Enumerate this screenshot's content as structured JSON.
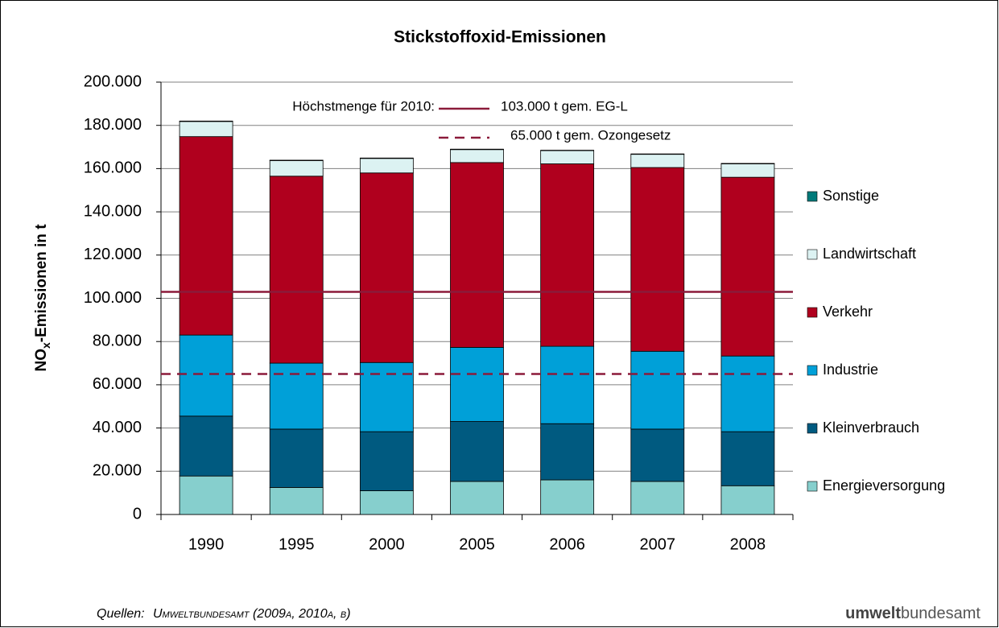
{
  "chart_data": {
    "type": "stacked_bar",
    "title": "Stickstoffoxid-Emissionen",
    "ylabel": {
      "main": "NO",
      "sub": "x",
      "rest": "-Emissionen in t"
    },
    "categories": [
      "1990",
      "1995",
      "2000",
      "2005",
      "2006",
      "2007",
      "2008"
    ],
    "series": [
      {
        "name": "Energieversorgung",
        "color": "#86cfcd",
        "values": [
          17800,
          12500,
          11000,
          15300,
          16000,
          15300,
          13300
        ]
      },
      {
        "name": "Kleinverbrauch",
        "color": "#005a80",
        "values": [
          27700,
          27000,
          27300,
          27700,
          26000,
          24200,
          25000
        ]
      },
      {
        "name": "Industrie",
        "color": "#00a0d8",
        "values": [
          37500,
          30500,
          32000,
          34300,
          35800,
          36000,
          35000
        ]
      },
      {
        "name": "Verkehr",
        "color": "#b0001e",
        "values": [
          91800,
          86500,
          87700,
          85500,
          84400,
          85000,
          82700
        ]
      },
      {
        "name": "Landwirtschaft",
        "color": "#dcf2f2",
        "values": [
          7000,
          7200,
          6700,
          6000,
          6100,
          6100,
          6200
        ]
      },
      {
        "name": "Sonstige",
        "color": "#007a7a",
        "values": [
          200,
          200,
          200,
          200,
          200,
          200,
          200
        ]
      }
    ],
    "ylim": [
      0,
      200000
    ],
    "yticks": [
      0,
      {
        "value": 20000,
        "label": "20.000"
      },
      {
        "value": 40000,
        "label": "40.000"
      },
      {
        "value": 60000,
        "label": "60.000"
      },
      {
        "value": 80000,
        "label": "80.000"
      },
      {
        "value": 100000,
        "label": "100.000"
      },
      {
        "value": 120000,
        "label": "120.000"
      },
      {
        "value": 140000,
        "label": "140.000"
      },
      {
        "value": 160000,
        "label": "160.000"
      },
      {
        "value": 180000,
        "label": "180.000"
      },
      {
        "value": 200000,
        "label": "200.000"
      }
    ],
    "grid": true,
    "legend": "right",
    "reference_title": "Höchstmenge für 2010:",
    "reference_lines": [
      {
        "value": 103000,
        "label": "103.000 t gem. EG-L",
        "style": "solid",
        "color": "#8b1a3a"
      },
      {
        "value": 65000,
        "label": "65.000 t gem. Ozongesetz",
        "style": "dashed",
        "color": "#8b1a3a"
      }
    ],
    "source": {
      "prefix": "Quellen:",
      "text": "Umweltbundesamt (2009a, 2010a, b)"
    },
    "logo": {
      "bold": "umwelt",
      "rest": "bundesamt"
    }
  }
}
